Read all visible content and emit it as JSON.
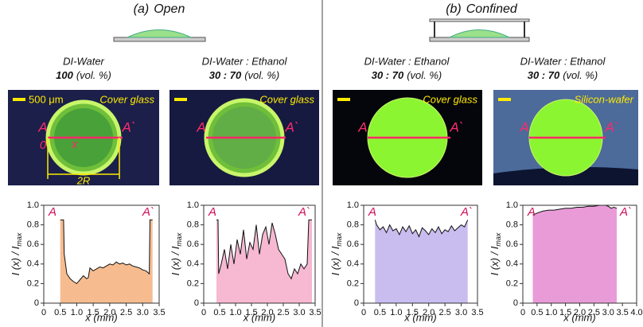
{
  "sections": [
    {
      "label": "(a)",
      "title": "Open"
    },
    {
      "label": "(b)",
      "title": "Confined"
    }
  ],
  "columns": [
    {
      "liquid": "DI-Water",
      "ratio": "100",
      "unit": "(vol. %)",
      "substrate": "Cover glass",
      "scale": "500 μm",
      "left": "A",
      "right": "A`",
      "origin": "0",
      "axis": "x",
      "diameter": "2R"
    },
    {
      "liquid": "DI-Water : Ethanol",
      "ratio": "30 : 70",
      "unit": "(vol. %)",
      "substrate": "Cover glass",
      "left": "A",
      "right": "A`"
    },
    {
      "liquid": "DI-Water : Ethanol",
      "ratio": "30 : 70",
      "unit": "(vol. %)",
      "substrate": "Cover glass",
      "left": "A",
      "right": "A`"
    },
    {
      "liquid": "DI-Water : Ethanol",
      "ratio": "30 : 70",
      "unit": "(vol. %)",
      "substrate": "Silicon-wafer",
      "left": "A",
      "right": "A`"
    }
  ],
  "chart_data": [
    {
      "type": "area",
      "xlabel": "x (mm)",
      "ylabel": "I (x) / I",
      "ylabel_sub": "max",
      "color": "#f6bc90",
      "annotations": [
        "A",
        "A`"
      ],
      "x": [
        0.5,
        0.6,
        0.62,
        0.7,
        0.8,
        0.9,
        1.0,
        1.1,
        1.2,
        1.3,
        1.35,
        1.4,
        1.5,
        1.6,
        1.7,
        1.8,
        1.9,
        2.0,
        2.1,
        2.2,
        2.3,
        2.4,
        2.5,
        2.6,
        2.7,
        2.8,
        2.9,
        3.0,
        3.1,
        3.2,
        3.22,
        3.3
      ],
      "values": [
        0.85,
        0.85,
        0.5,
        0.3,
        0.25,
        0.22,
        0.2,
        0.24,
        0.28,
        0.25,
        0.26,
        0.36,
        0.33,
        0.35,
        0.37,
        0.36,
        0.38,
        0.4,
        0.39,
        0.42,
        0.4,
        0.41,
        0.39,
        0.4,
        0.38,
        0.37,
        0.36,
        0.34,
        0.33,
        0.3,
        0.85,
        0.85
      ],
      "xlim": [
        0,
        3.5
      ],
      "xticks": [
        0,
        0.5,
        {
          "value": 1,
          "label": "1.0"
        },
        1.5,
        {
          "value": 2,
          "label": "2.0"
        },
        2.5,
        {
          "value": 3,
          "label": "3.0"
        },
        3.5
      ],
      "ylim": [
        0,
        1
      ],
      "yticks": [
        0,
        0.2,
        0.4,
        0.6,
        0.8,
        {
          "value": 1,
          "label": "1.0"
        }
      ]
    },
    {
      "type": "area",
      "xlabel": "x (mm)",
      "ylabel": "I (x) / I",
      "ylabel_sub": "max",
      "color": "#f7b8d2",
      "annotations": [
        "A",
        "A`"
      ],
      "x": [
        0.4,
        0.45,
        0.47,
        0.55,
        0.65,
        0.75,
        0.85,
        0.95,
        1.05,
        1.15,
        1.25,
        1.35,
        1.45,
        1.55,
        1.65,
        1.75,
        1.85,
        1.95,
        2.05,
        2.15,
        2.25,
        2.35,
        2.45,
        2.55,
        2.65,
        2.75,
        2.85,
        2.95,
        3.05,
        3.15,
        3.25,
        3.3,
        3.4
      ],
      "values": [
        0.85,
        0.85,
        0.3,
        0.4,
        0.55,
        0.35,
        0.6,
        0.4,
        0.65,
        0.5,
        0.75,
        0.45,
        0.62,
        0.55,
        0.8,
        0.5,
        0.7,
        0.78,
        0.6,
        0.82,
        0.7,
        0.55,
        0.5,
        0.45,
        0.3,
        0.25,
        0.35,
        0.3,
        0.4,
        0.35,
        0.4,
        0.85,
        0.85
      ],
      "xlim": [
        0,
        3.5
      ],
      "xticks": [
        0,
        0.5,
        {
          "value": 1,
          "label": "1.0"
        },
        1.5,
        {
          "value": 2,
          "label": "2.0"
        },
        2.5,
        {
          "value": 3,
          "label": "3.0"
        },
        3.5
      ],
      "ylim": [
        0,
        1
      ],
      "yticks": [
        0,
        0.2,
        0.4,
        0.6,
        0.8,
        {
          "value": 1,
          "label": "1.0"
        }
      ]
    },
    {
      "type": "area",
      "xlabel": "x (mm)",
      "ylabel": "I (x) / I",
      "ylabel_sub": "max",
      "color": "#c9bcef",
      "annotations": [
        "A",
        "A`"
      ],
      "x": [
        0.35,
        0.4,
        0.5,
        0.6,
        0.7,
        0.8,
        0.9,
        1.0,
        1.1,
        1.2,
        1.3,
        1.4,
        1.5,
        1.6,
        1.7,
        1.8,
        1.9,
        2.0,
        2.1,
        2.2,
        2.3,
        2.4,
        2.5,
        2.6,
        2.7,
        2.8,
        2.9,
        3.0,
        3.1,
        3.2
      ],
      "values": [
        0.85,
        0.8,
        0.75,
        0.78,
        0.72,
        0.8,
        0.74,
        0.76,
        0.7,
        0.78,
        0.73,
        0.79,
        0.71,
        0.75,
        0.68,
        0.77,
        0.74,
        0.7,
        0.76,
        0.72,
        0.78,
        0.71,
        0.75,
        0.73,
        0.79,
        0.74,
        0.77,
        0.8,
        0.78,
        0.85
      ],
      "xlim": [
        0,
        3.5
      ],
      "xticks": [
        0,
        0.5,
        {
          "value": 1,
          "label": "1.0"
        },
        1.5,
        {
          "value": 2,
          "label": "2.0"
        },
        2.5,
        {
          "value": 3,
          "label": "3.0"
        },
        3.5
      ],
      "ylim": [
        0,
        1
      ],
      "yticks": [
        0,
        0.2,
        0.4,
        0.6,
        0.8,
        {
          "value": 1,
          "label": "1.0"
        }
      ]
    },
    {
      "type": "area",
      "xlabel": "x (mm)",
      "ylabel": "I (x) / I",
      "ylabel_sub": "max",
      "color": "#e99bd8",
      "annotations": [
        "A",
        "A`"
      ],
      "x": [
        0.35,
        0.5,
        0.7,
        0.9,
        1.1,
        1.3,
        1.5,
        1.7,
        1.9,
        2.1,
        2.3,
        2.5,
        2.7,
        2.9,
        3.0,
        3.1,
        3.2,
        3.3
      ],
      "values": [
        0.9,
        0.92,
        0.94,
        0.95,
        0.95,
        0.96,
        0.97,
        0.97,
        0.98,
        0.98,
        0.99,
        0.99,
        1.0,
        1.0,
        0.99,
        0.97,
        0.98,
        0.97
      ],
      "xlim": [
        0,
        4
      ],
      "xticks": [
        0,
        0.5,
        {
          "value": 1,
          "label": "1.0"
        },
        1.5,
        {
          "value": 2,
          "label": "2.0"
        },
        2.5,
        {
          "value": 3,
          "label": "3.0"
        },
        3.5,
        {
          "value": 4,
          "label": "4.0"
        }
      ],
      "ylim": [
        0,
        1
      ],
      "yticks": [
        0,
        0.2,
        0.4,
        0.6,
        0.8,
        {
          "value": 1,
          "label": "1.0"
        }
      ]
    }
  ]
}
